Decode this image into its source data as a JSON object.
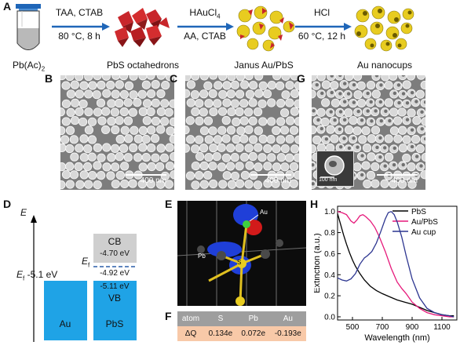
{
  "panel_A": {
    "letter": "A",
    "precursor": "Pb(Ac)",
    "precursor_sub": "2",
    "steps": [
      {
        "line1": "TAA, CTAB",
        "line2": "80 °C, 8 h"
      },
      {
        "line1": "HAuCl",
        "line1_sub": "4",
        "line2": "AA, CTAB"
      },
      {
        "line1": "HCl",
        "line2": "60 °C, 12 h"
      }
    ],
    "products": [
      "PbS octahedrons",
      "Janus Au/PbS",
      "Au nanocups"
    ]
  },
  "sem_panels": [
    {
      "letter": "B",
      "scale": "400 nm"
    },
    {
      "letter": "C",
      "scale": "400 nm"
    },
    {
      "letter": "G",
      "scale": "400 nm",
      "inset_scale": "100 nm"
    }
  ],
  "panel_D": {
    "letter": "D",
    "axis_label": "E",
    "au_label": "Au",
    "pbs_label": "PbS",
    "ef_au": "E",
    "ef_au_sub": "f",
    "ef_au_value": "-5.1 eV",
    "cb_label": "CB",
    "cb_value": "-4.70 eV",
    "ef_pbs": "E",
    "ef_pbs_sub": "f",
    "ef_pbs_value": "-4.92 eV",
    "vb_value": "-5.11 eV",
    "vb_label": "VB"
  },
  "panel_E": {
    "letter": "E",
    "atoms": [
      "Au",
      "Pb",
      "S"
    ]
  },
  "panel_F": {
    "letter": "F",
    "header": [
      "atom",
      "S",
      "Pb",
      "Au"
    ],
    "row_label": "ΔQ",
    "values": [
      "0.134e",
      "0.072e",
      "-0.193e"
    ]
  },
  "panel_H": {
    "letter": "H"
  },
  "chart_data": {
    "type": "line",
    "xlabel": "Wavelength (nm)",
    "ylabel": "Extinction (a.u.)",
    "xlim": [
      400,
      1200
    ],
    "ylim": [
      -0.03,
      1.05
    ],
    "xticks": [
      500,
      700,
      900,
      1100
    ],
    "yticks": [
      0.0,
      0.2,
      0.4,
      0.6,
      0.8,
      1.0
    ],
    "grid": false,
    "legend_position": "top-right",
    "series": [
      {
        "name": "PbS",
        "color": "#000000",
        "x": [
          400,
          420,
          440,
          460,
          480,
          500,
          520,
          550,
          580,
          620,
          660,
          700,
          750,
          800,
          850,
          900,
          950,
          1000,
          1050,
          1100,
          1150,
          1180
        ],
        "y": [
          0.98,
          0.88,
          0.78,
          0.69,
          0.61,
          0.54,
          0.48,
          0.41,
          0.35,
          0.29,
          0.25,
          0.22,
          0.19,
          0.16,
          0.14,
          0.12,
          0.09,
          0.06,
          0.04,
          0.02,
          0.01,
          0.01
        ]
      },
      {
        "name": "Au/PbS",
        "color": "#e6197a",
        "x": [
          400,
          430,
          460,
          490,
          510,
          530,
          550,
          570,
          590,
          620,
          650,
          680,
          720,
          760,
          800,
          830,
          860,
          900,
          950,
          1000,
          1050,
          1100,
          1150,
          1180
        ],
        "y": [
          1.0,
          0.99,
          0.97,
          0.91,
          0.89,
          0.92,
          0.96,
          0.97,
          0.95,
          0.91,
          0.85,
          0.76,
          0.62,
          0.46,
          0.33,
          0.27,
          0.22,
          0.14,
          0.08,
          0.04,
          0.02,
          0.01,
          0.0,
          0.0
        ]
      },
      {
        "name": "Au cup",
        "color": "#2c3590",
        "x": [
          400,
          430,
          460,
          490,
          520,
          550,
          580,
          600,
          630,
          660,
          690,
          720,
          740,
          760,
          780,
          800,
          830,
          860,
          900,
          950,
          1000,
          1050,
          1100,
          1150,
          1180
        ],
        "y": [
          0.37,
          0.35,
          0.34,
          0.36,
          0.41,
          0.5,
          0.56,
          0.58,
          0.62,
          0.7,
          0.81,
          0.93,
          0.99,
          1.0,
          0.97,
          0.9,
          0.76,
          0.58,
          0.36,
          0.18,
          0.08,
          0.04,
          0.02,
          0.01,
          0.0
        ]
      }
    ]
  }
}
